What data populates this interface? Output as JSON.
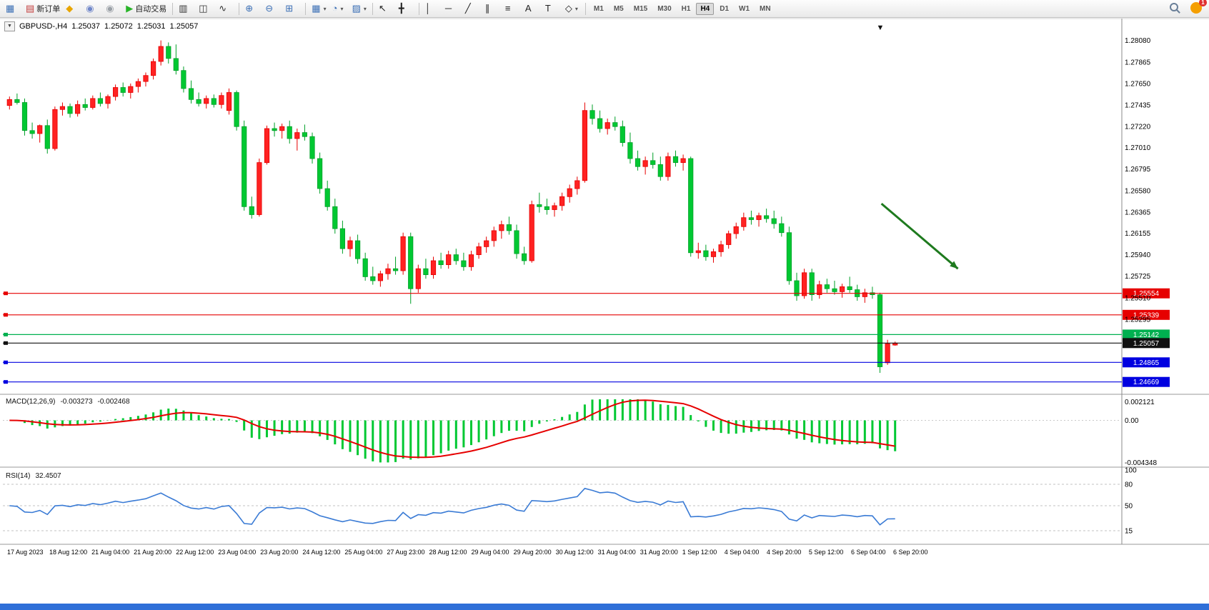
{
  "toolbar": {
    "groups": [
      {
        "items": [
          {
            "name": "new-chart-window-icon",
            "glyph": "▦",
            "color": "#3b6fb5"
          },
          {
            "name": "new-order-button",
            "glyph": "▤",
            "color": "#c23b3a",
            "label": "新订单"
          },
          {
            "name": "mql-market-icon",
            "glyph": "◆",
            "color": "#e8a500"
          },
          {
            "name": "community-icon",
            "glyph": "◉",
            "color": "#6f86c9"
          },
          {
            "name": "support-icon",
            "glyph": "◉",
            "color": "#9aa0a6"
          },
          {
            "name": "autotrading-button",
            "glyph": "▶",
            "color": "#28b428",
            "label": "自动交易"
          }
        ]
      },
      {
        "items": [
          {
            "name": "bar-chart-icon",
            "glyph": "▥",
            "color": "#333333"
          },
          {
            "name": "candlestick-chart-icon",
            "glyph": "◫",
            "color": "#333333"
          },
          {
            "name": "line-chart-icon",
            "glyph": "∿",
            "color": "#333333"
          }
        ]
      },
      {
        "items": [
          {
            "name": "zoom-in-icon",
            "glyph": "⊕",
            "color": "#3b6fb5"
          },
          {
            "name": "zoom-out-icon",
            "glyph": "⊖",
            "color": "#3b6fb5"
          },
          {
            "name": "tile-windows-icon",
            "glyph": "⊞",
            "color": "#3b6fb5"
          }
        ]
      },
      {
        "items": [
          {
            "name": "new-chart-dropdown",
            "glyph": "▦",
            "color": "#3b6fb5",
            "dropdown": true
          },
          {
            "name": "profiles-clock-dropdown",
            "glyph": "◔",
            "color": "#3b6fb5",
            "dropdown": true
          },
          {
            "name": "templates-dropdown",
            "glyph": "▨",
            "color": "#3b6fb5",
            "dropdown": true
          }
        ]
      },
      {
        "items": [
          {
            "name": "cursor-icon",
            "glyph": "↖",
            "color": "#222222"
          },
          {
            "name": "crosshair-icon",
            "glyph": "╋",
            "color": "#222222"
          }
        ]
      },
      {
        "items": [
          {
            "name": "vertical-line-icon",
            "glyph": "│",
            "color": "#222222"
          },
          {
            "name": "horizontal-line-icon",
            "glyph": "─",
            "color": "#222222"
          },
          {
            "name": "trendline-icon",
            "glyph": "╱",
            "color": "#222222"
          },
          {
            "name": "channel-icon",
            "glyph": "∥",
            "color": "#222222"
          },
          {
            "name": "fibonacci-icon",
            "glyph": "≡",
            "color": "#222222"
          },
          {
            "name": "text-icon",
            "glyph": "A",
            "color": "#222222"
          },
          {
            "name": "text-label-icon",
            "glyph": "T",
            "color": "#222222"
          },
          {
            "name": "shapes-dropdown",
            "glyph": "◇",
            "color": "#222222",
            "dropdown": true
          }
        ]
      }
    ],
    "timeframes": [
      {
        "label": "M1"
      },
      {
        "label": "M5"
      },
      {
        "label": "M15"
      },
      {
        "label": "M30"
      },
      {
        "label": "H1"
      },
      {
        "label": "H4",
        "active": true
      },
      {
        "label": "D1"
      },
      {
        "label": "W1"
      },
      {
        "label": "MN"
      }
    ],
    "search_icon": "search",
    "notification_badge": "1"
  },
  "window": {
    "symbol_header": {
      "expander_icon": "▼",
      "title": "GBPUSD-,H4",
      "open": "1.25037",
      "high": "1.25072",
      "low": "1.25031",
      "close": "1.25057"
    },
    "sell_marker_icon": "▼"
  },
  "chart_data": {
    "type": "candlestick",
    "symbol": "GBPUSD-",
    "timeframe": "H4",
    "price_range": {
      "max": 1.2827,
      "min": 1.2456
    },
    "price_axis_labels": [
      "1.28080",
      "1.27865",
      "1.27650",
      "1.27435",
      "1.27220",
      "1.27010",
      "1.26795",
      "1.26580",
      "1.26365",
      "1.26155",
      "1.25940",
      "1.25725",
      "1.25510",
      "1.25295"
    ],
    "hlines": [
      {
        "price": 1.25554,
        "text": "1.25554",
        "color": "#e60000"
      },
      {
        "price": 1.25339,
        "text": "1.25339",
        "color": "#e60000"
      },
      {
        "price": 1.25142,
        "text": "1.25142",
        "color": "#00b050"
      },
      {
        "price": 1.25057,
        "text": "1.25057",
        "color": "#111111"
      },
      {
        "price": 1.24865,
        "text": "1.24865",
        "color": "#0000e0"
      },
      {
        "price": 1.24669,
        "text": "1.24669",
        "color": "#0000e0"
      }
    ],
    "time_labels": [
      "17 Aug 2023",
      "18 Aug 12:00",
      "21 Aug 04:00",
      "21 Aug 20:00",
      "22 Aug 12:00",
      "23 Aug 04:00",
      "23 Aug 20:00",
      "24 Aug 12:00",
      "25 Aug 04:00",
      "27 Aug 23:00",
      "28 Aug 12:00",
      "29 Aug 04:00",
      "29 Aug 20:00",
      "30 Aug 12:00",
      "31 Aug 04:00",
      "31 Aug 20:00",
      "1 Sep 12:00",
      "4 Sep 04:00",
      "4 Sep 20:00",
      "5 Sep 12:00",
      "6 Sep 04:00",
      "6 Sep 20:00"
    ],
    "candles": [
      [
        1.2743,
        1.2752,
        1.2739,
        1.2749
      ],
      [
        1.2749,
        1.2755,
        1.2744,
        1.2746
      ],
      [
        1.2746,
        1.275,
        1.2713,
        1.2718
      ],
      [
        1.2718,
        1.2726,
        1.271,
        1.2715
      ],
      [
        1.2715,
        1.2724,
        1.2706,
        1.2723
      ],
      [
        1.2723,
        1.2729,
        1.2695,
        1.27
      ],
      [
        1.27,
        1.2742,
        1.2698,
        1.2739
      ],
      [
        1.2739,
        1.2746,
        1.2733,
        1.2742
      ],
      [
        1.2742,
        1.2745,
        1.2731,
        1.2735
      ],
      [
        1.2735,
        1.2748,
        1.2732,
        1.2744
      ],
      [
        1.2744,
        1.275,
        1.2738,
        1.2741
      ],
      [
        1.2741,
        1.2753,
        1.2739,
        1.275
      ],
      [
        1.275,
        1.2756,
        1.2742,
        1.2745
      ],
      [
        1.2745,
        1.2754,
        1.274,
        1.2752
      ],
      [
        1.2752,
        1.2764,
        1.2748,
        1.2761
      ],
      [
        1.2761,
        1.2766,
        1.2752,
        1.2756
      ],
      [
        1.2756,
        1.2765,
        1.275,
        1.2762
      ],
      [
        1.2762,
        1.277,
        1.2756,
        1.2767
      ],
      [
        1.2767,
        1.2776,
        1.2762,
        1.2773
      ],
      [
        1.2773,
        1.279,
        1.2769,
        1.2787
      ],
      [
        1.2787,
        1.2808,
        1.2783,
        1.2802
      ],
      [
        1.2802,
        1.2806,
        1.2785,
        1.279
      ],
      [
        1.279,
        1.2804,
        1.2774,
        1.2778
      ],
      [
        1.2778,
        1.2782,
        1.2756,
        1.276
      ],
      [
        1.276,
        1.2768,
        1.2745,
        1.2749
      ],
      [
        1.2749,
        1.2756,
        1.2742,
        1.2745
      ],
      [
        1.2745,
        1.2753,
        1.274,
        1.275
      ],
      [
        1.275,
        1.2754,
        1.2741,
        1.2744
      ],
      [
        1.2744,
        1.2756,
        1.274,
        1.2753
      ],
      [
        1.2738,
        1.276,
        1.2734,
        1.2756
      ],
      [
        1.2756,
        1.2758,
        1.2718,
        1.2722
      ],
      [
        1.2722,
        1.2728,
        1.2638,
        1.2642
      ],
      [
        1.2642,
        1.2652,
        1.263,
        1.2634
      ],
      [
        1.2634,
        1.269,
        1.2632,
        1.2686
      ],
      [
        1.2686,
        1.2723,
        1.2684,
        1.272
      ],
      [
        1.272,
        1.2726,
        1.2712,
        1.2718
      ],
      [
        1.2718,
        1.2725,
        1.271,
        1.2722
      ],
      [
        1.2722,
        1.2728,
        1.2705,
        1.271
      ],
      [
        1.271,
        1.272,
        1.2698,
        1.2716
      ],
      [
        1.2716,
        1.2724,
        1.2708,
        1.2712
      ],
      [
        1.2712,
        1.2716,
        1.2685,
        1.269
      ],
      [
        1.269,
        1.2696,
        1.2655,
        1.266
      ],
      [
        1.266,
        1.2668,
        1.2638,
        1.2642
      ],
      [
        1.2642,
        1.265,
        1.2615,
        1.262
      ],
      [
        1.262,
        1.2628,
        1.2595,
        1.26
      ],
      [
        1.26,
        1.2612,
        1.2592,
        1.2608
      ],
      [
        1.2608,
        1.2614,
        1.2585,
        1.259
      ],
      [
        1.259,
        1.2596,
        1.2568,
        1.2572
      ],
      [
        1.2572,
        1.2582,
        1.2564,
        1.2568
      ],
      [
        1.2568,
        1.2578,
        1.2562,
        1.2575
      ],
      [
        1.2575,
        1.2585,
        1.2569,
        1.258
      ],
      [
        1.258,
        1.2592,
        1.2574,
        1.2578
      ],
      [
        1.2578,
        1.2616,
        1.2574,
        1.2612
      ],
      [
        1.2612,
        1.2616,
        1.2545,
        1.256
      ],
      [
        1.256,
        1.2584,
        1.2556,
        1.258
      ],
      [
        1.258,
        1.259,
        1.257,
        1.2574
      ],
      [
        1.2574,
        1.2592,
        1.257,
        1.2588
      ],
      [
        1.2588,
        1.2596,
        1.258,
        1.2584
      ],
      [
        1.2584,
        1.2598,
        1.258,
        1.2594
      ],
      [
        1.2594,
        1.26,
        1.2584,
        1.2588
      ],
      [
        1.2588,
        1.2596,
        1.2578,
        1.2582
      ],
      [
        1.2582,
        1.2598,
        1.2578,
        1.2594
      ],
      [
        1.2594,
        1.2606,
        1.259,
        1.2602
      ],
      [
        1.2602,
        1.2612,
        1.2596,
        1.2608
      ],
      [
        1.2608,
        1.2622,
        1.2602,
        1.2618
      ],
      [
        1.2618,
        1.2628,
        1.261,
        1.2624
      ],
      [
        1.2624,
        1.2632,
        1.2614,
        1.2618
      ],
      [
        1.2618,
        1.2624,
        1.259,
        1.2595
      ],
      [
        1.2595,
        1.2602,
        1.2584,
        1.2588
      ],
      [
        1.2588,
        1.2648,
        1.2586,
        1.2644
      ],
      [
        1.2644,
        1.2656,
        1.2636,
        1.2642
      ],
      [
        1.2642,
        1.265,
        1.2634,
        1.2639
      ],
      [
        1.2639,
        1.2646,
        1.2632,
        1.2643
      ],
      [
        1.2643,
        1.2656,
        1.2638,
        1.2652
      ],
      [
        1.2652,
        1.2664,
        1.2646,
        1.266
      ],
      [
        1.266,
        1.2672,
        1.2654,
        1.2668
      ],
      [
        1.2668,
        1.2746,
        1.2666,
        1.2738
      ],
      [
        1.2738,
        1.2744,
        1.2724,
        1.273
      ],
      [
        1.273,
        1.2738,
        1.2716,
        1.272
      ],
      [
        1.272,
        1.273,
        1.2714,
        1.2726
      ],
      [
        1.2726,
        1.2732,
        1.2718,
        1.2722
      ],
      [
        1.2722,
        1.2728,
        1.2702,
        1.2706
      ],
      [
        1.2706,
        1.2716,
        1.2685,
        1.269
      ],
      [
        1.269,
        1.2698,
        1.2678,
        1.2682
      ],
      [
        1.2682,
        1.2692,
        1.2674,
        1.2688
      ],
      [
        1.2688,
        1.2696,
        1.268,
        1.2684
      ],
      [
        1.2684,
        1.2692,
        1.2668,
        1.2672
      ],
      [
        1.2672,
        1.2696,
        1.2668,
        1.2692
      ],
      [
        1.2692,
        1.2698,
        1.2682,
        1.2686
      ],
      [
        1.2686,
        1.2694,
        1.2678,
        1.269
      ],
      [
        1.269,
        1.2692,
        1.2592,
        1.2596
      ],
      [
        1.2596,
        1.2606,
        1.259,
        1.2598
      ],
      [
        1.2598,
        1.2604,
        1.2588,
        1.2592
      ],
      [
        1.2592,
        1.26,
        1.2586,
        1.2597
      ],
      [
        1.2597,
        1.2608,
        1.2592,
        1.2604
      ],
      [
        1.2604,
        1.2618,
        1.26,
        1.2615
      ],
      [
        1.2615,
        1.2626,
        1.261,
        1.2622
      ],
      [
        1.2622,
        1.2636,
        1.2618,
        1.2631
      ],
      [
        1.2631,
        1.2638,
        1.2624,
        1.2629
      ],
      [
        1.2629,
        1.2636,
        1.2622,
        1.2633
      ],
      [
        1.2633,
        1.264,
        1.2626,
        1.263
      ],
      [
        1.263,
        1.2638,
        1.262,
        1.2625
      ],
      [
        1.2625,
        1.2632,
        1.2612,
        1.2616
      ],
      [
        1.2616,
        1.2622,
        1.2564,
        1.2568
      ],
      [
        1.2568,
        1.2576,
        1.2548,
        1.2553
      ],
      [
        1.2553,
        1.258,
        1.255,
        1.2576
      ],
      [
        1.2576,
        1.258,
        1.2548,
        1.2554
      ],
      [
        1.2554,
        1.2568,
        1.255,
        1.2564
      ],
      [
        1.2564,
        1.257,
        1.2556,
        1.256
      ],
      [
        1.256,
        1.2568,
        1.2554,
        1.2557
      ],
      [
        1.2557,
        1.2565,
        1.2551,
        1.2562
      ],
      [
        1.2562,
        1.2572,
        1.2556,
        1.2559
      ],
      [
        1.2559,
        1.2564,
        1.2548,
        1.2552
      ],
      [
        1.2552,
        1.256,
        1.2546,
        1.2556
      ],
      [
        1.2556,
        1.2562,
        1.255,
        1.2554
      ],
      [
        1.2554,
        1.2556,
        1.2476,
        1.2482
      ],
      [
        1.2486,
        1.2509,
        1.2484,
        1.2505
      ],
      [
        1.25037,
        1.25072,
        1.25031,
        1.25057
      ]
    ],
    "colors": {
      "up": "#ff2222",
      "up_edge": "#e60000",
      "down": "#00c832",
      "down_edge": "#00a028"
    },
    "sell_marker": {
      "bar": 115
    },
    "trend_arrow": {
      "from_bar": 115.2,
      "from_price": 1.2645,
      "to_bar": 125.3,
      "to_price": 1.258,
      "color": "#1e7a1e"
    },
    "macd": {
      "title": "MACD(12,26,9)",
      "value_main": "-0.003273",
      "value_signal": "-0.002468",
      "axis_max": 0.002121,
      "axis_min": -0.004348,
      "axis_max_text": "0.002121",
      "axis_zero_text": "0.00",
      "axis_min_text": "-0.004348",
      "histogram_color": "#00c832",
      "signal_color": "#e60000"
    },
    "rsi": {
      "title": "RSI(14)",
      "value": "32.4507",
      "axis": [
        "100",
        "80",
        "50",
        "15"
      ],
      "levels": [
        80,
        50,
        15
      ],
      "line_color": "#3a7bd5"
    }
  }
}
